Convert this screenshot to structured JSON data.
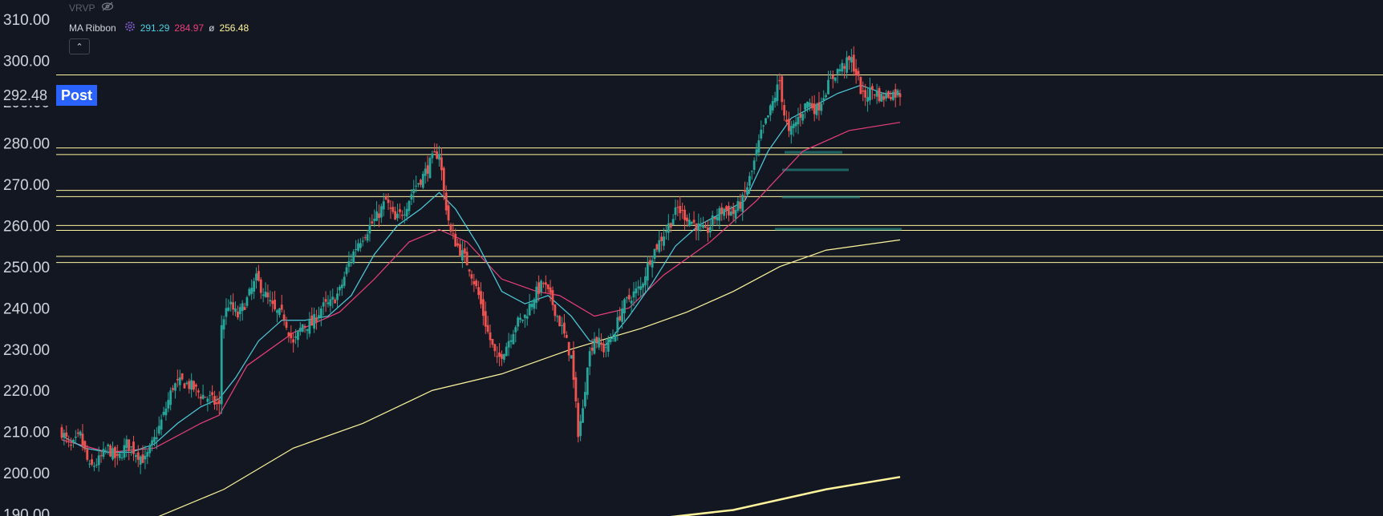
{
  "legend": {
    "vrvp_label": "VRVP",
    "ribbon_label": "MA Ribbon",
    "ma_values": [
      "291.29",
      "284.97",
      "256.48"
    ],
    "ma_symbol": "ø",
    "collapse_icon": "chevron-up-icon"
  },
  "price_tag": {
    "value": "292.48",
    "badge": "Post"
  },
  "colors": {
    "background": "#131722",
    "up": "#26a69a",
    "down": "#ef5350",
    "ma_fast": "#4dd0e1",
    "ma_mid": "#ec407a",
    "ma_slow": "#fff59d",
    "level_line": "#fff59d",
    "axis_text": "#d1d4dc",
    "badge": "#2962ff"
  },
  "chart_data": {
    "type": "candlestick",
    "y_ticks": [
      "310.00",
      "300.00",
      "290.00",
      "280.00",
      "270.00",
      "260.00",
      "250.00",
      "240.00",
      "230.00",
      "220.00",
      "210.00",
      "200.00",
      "190.00"
    ],
    "ylim": [
      190,
      311
    ],
    "grid": false,
    "last_price": 292.48,
    "horizontal_levels": [
      296.5,
      278.8,
      277.2,
      268.5,
      267.0,
      260.0,
      258.8,
      252.5,
      251.0
    ],
    "close_path": [
      [
        0,
        210
      ],
      [
        4,
        206
      ],
      [
        8,
        209
      ],
      [
        12,
        201
      ],
      [
        16,
        203
      ],
      [
        20,
        206
      ],
      [
        24,
        203
      ],
      [
        28,
        207
      ],
      [
        32,
        205
      ],
      [
        36,
        203
      ],
      [
        40,
        208
      ],
      [
        44,
        214
      ],
      [
        48,
        221
      ],
      [
        52,
        222
      ],
      [
        56,
        221
      ],
      [
        60,
        219
      ],
      [
        64,
        218
      ],
      [
        68,
        216
      ],
      [
        69,
        236
      ],
      [
        72,
        241
      ],
      [
        76,
        238
      ],
      [
        80,
        242
      ],
      [
        84,
        247
      ],
      [
        88,
        243
      ],
      [
        92,
        239
      ],
      [
        96,
        238
      ],
      [
        100,
        231
      ],
      [
        104,
        236
      ],
      [
        108,
        236
      ],
      [
        112,
        240
      ],
      [
        116,
        241
      ],
      [
        120,
        244
      ],
      [
        124,
        251
      ],
      [
        128,
        256
      ],
      [
        132,
        259
      ],
      [
        136,
        262
      ],
      [
        140,
        266
      ],
      [
        144,
        261
      ],
      [
        148,
        264
      ],
      [
        152,
        269
      ],
      [
        156,
        272
      ],
      [
        160,
        276
      ],
      [
        163,
        278
      ],
      [
        165,
        268
      ],
      [
        168,
        258
      ],
      [
        172,
        254
      ],
      [
        176,
        250
      ],
      [
        180,
        243
      ],
      [
        184,
        234
      ],
      [
        188,
        227
      ],
      [
        192,
        231
      ],
      [
        196,
        236
      ],
      [
        200,
        238
      ],
      [
        204,
        243
      ],
      [
        208,
        246
      ],
      [
        212,
        241
      ],
      [
        216,
        235
      ],
      [
        220,
        228
      ],
      [
        223,
        210
      ],
      [
        225,
        215
      ],
      [
        227,
        227
      ],
      [
        230,
        233
      ],
      [
        234,
        230
      ],
      [
        238,
        233
      ],
      [
        242,
        240
      ],
      [
        246,
        243
      ],
      [
        250,
        245
      ],
      [
        254,
        252
      ],
      [
        258,
        256
      ],
      [
        262,
        260
      ],
      [
        266,
        264
      ],
      [
        270,
        262
      ],
      [
        274,
        260
      ],
      [
        278,
        258
      ],
      [
        282,
        262
      ],
      [
        286,
        264
      ],
      [
        290,
        263
      ],
      [
        294,
        266
      ],
      [
        298,
        273
      ],
      [
        302,
        282
      ],
      [
        306,
        288
      ],
      [
        310,
        295
      ],
      [
        312,
        287
      ],
      [
        314,
        282
      ],
      [
        318,
        286
      ],
      [
        322,
        290
      ],
      [
        326,
        288
      ],
      [
        330,
        293
      ],
      [
        334,
        297
      ],
      [
        338,
        299
      ],
      [
        341,
        300
      ],
      [
        343,
        297
      ],
      [
        346,
        291
      ],
      [
        350,
        293
      ],
      [
        354,
        291
      ],
      [
        358,
        292
      ],
      [
        362,
        292
      ]
    ],
    "ma_fast": [
      [
        0,
        209
      ],
      [
        10,
        206
      ],
      [
        20,
        205
      ],
      [
        30,
        205
      ],
      [
        40,
        207
      ],
      [
        50,
        212
      ],
      [
        60,
        216
      ],
      [
        68,
        218
      ],
      [
        75,
        223
      ],
      [
        85,
        232
      ],
      [
        95,
        237
      ],
      [
        105,
        237
      ],
      [
        115,
        238
      ],
      [
        125,
        243
      ],
      [
        135,
        253
      ],
      [
        145,
        260
      ],
      [
        155,
        264
      ],
      [
        163,
        268
      ],
      [
        170,
        264
      ],
      [
        180,
        255
      ],
      [
        190,
        244
      ],
      [
        200,
        241
      ],
      [
        210,
        243
      ],
      [
        220,
        238
      ],
      [
        228,
        232
      ],
      [
        235,
        231
      ],
      [
        245,
        238
      ],
      [
        255,
        246
      ],
      [
        265,
        255
      ],
      [
        275,
        260
      ],
      [
        285,
        263
      ],
      [
        295,
        266
      ],
      [
        305,
        278
      ],
      [
        315,
        286
      ],
      [
        325,
        289
      ],
      [
        335,
        292
      ],
      [
        345,
        294
      ],
      [
        355,
        292
      ],
      [
        362,
        292
      ]
    ],
    "ma_mid": [
      [
        0,
        208
      ],
      [
        20,
        205
      ],
      [
        40,
        206
      ],
      [
        60,
        212
      ],
      [
        68,
        214
      ],
      [
        80,
        226
      ],
      [
        100,
        234
      ],
      [
        120,
        239
      ],
      [
        135,
        247
      ],
      [
        150,
        256
      ],
      [
        163,
        259
      ],
      [
        175,
        256
      ],
      [
        190,
        247
      ],
      [
        205,
        244
      ],
      [
        215,
        243
      ],
      [
        230,
        238
      ],
      [
        245,
        240
      ],
      [
        260,
        248
      ],
      [
        280,
        256
      ],
      [
        300,
        266
      ],
      [
        320,
        278
      ],
      [
        340,
        283
      ],
      [
        362,
        285
      ]
    ],
    "ma_slow": [
      [
        40,
        189
      ],
      [
        70,
        196
      ],
      [
        100,
        206
      ],
      [
        130,
        212
      ],
      [
        160,
        220
      ],
      [
        190,
        224
      ],
      [
        220,
        230
      ],
      [
        250,
        235
      ],
      [
        270,
        239
      ],
      [
        290,
        244
      ],
      [
        310,
        250
      ],
      [
        330,
        254
      ],
      [
        362,
        256.5
      ]
    ],
    "ma_200": [
      [
        258,
        189
      ],
      [
        290,
        191
      ],
      [
        330,
        196
      ],
      [
        362,
        199
      ]
    ]
  }
}
